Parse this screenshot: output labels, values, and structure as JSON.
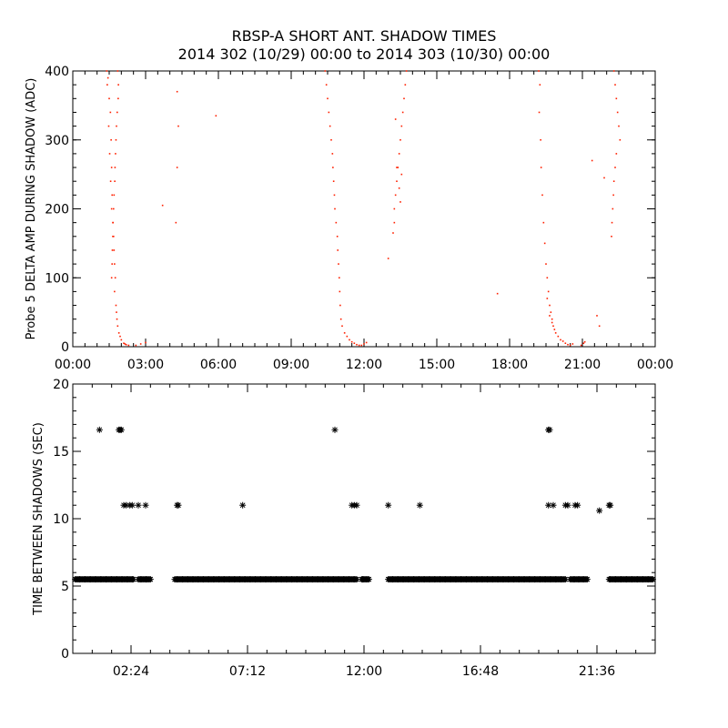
{
  "title": "RBSP-A SHORT ANT. SHADOW TIMES",
  "subtitle": "2014 302 (10/29) 00:00 to 2014 303 (10/30) 00:00",
  "colors": {
    "top_points": "#ff2000",
    "bottom_points": "#000000",
    "axes": "#000000",
    "background": "#ffffff"
  },
  "chart_data": [
    {
      "type": "scatter",
      "name": "delta-amp-panel",
      "xlabel": "",
      "ylabel": "Probe 5 DELTA AMP DURING SHADOW (ADC)",
      "x_unit": "hours",
      "xlim": [
        0,
        24
      ],
      "ylim": [
        0,
        400
      ],
      "xticks": [
        0,
        3,
        6,
        9,
        12,
        15,
        18,
        21,
        24
      ],
      "xtick_labels": [
        "00:00",
        "03:00",
        "06:00",
        "09:00",
        "12:00",
        "15:00",
        "18:00",
        "21:00",
        "00:00"
      ],
      "yticks": [
        0,
        100,
        200,
        300,
        400
      ],
      "ytick_labels": [
        "0",
        "100",
        "200",
        "300",
        "400"
      ],
      "point_color": "#ff2000",
      "points": [
        [
          1.4,
          400
        ],
        [
          1.45,
          390
        ],
        [
          1.42,
          380
        ],
        [
          1.5,
          360
        ],
        [
          1.55,
          340
        ],
        [
          1.48,
          320
        ],
        [
          1.58,
          300
        ],
        [
          1.52,
          280
        ],
        [
          1.6,
          260
        ],
        [
          1.56,
          240
        ],
        [
          1.62,
          220
        ],
        [
          1.6,
          200
        ],
        [
          1.65,
          180
        ],
        [
          1.68,
          160
        ],
        [
          1.7,
          140
        ],
        [
          1.72,
          120
        ],
        [
          1.75,
          100
        ],
        [
          1.72,
          80
        ],
        [
          1.78,
          60
        ],
        [
          1.8,
          50
        ],
        [
          1.82,
          40
        ],
        [
          1.85,
          30
        ],
        [
          1.9,
          20
        ],
        [
          1.95,
          15
        ],
        [
          2.0,
          10
        ],
        [
          2.1,
          5
        ],
        [
          2.2,
          3
        ],
        [
          2.3,
          2
        ],
        [
          1.85,
          400
        ],
        [
          1.88,
          380
        ],
        [
          1.87,
          360
        ],
        [
          1.83,
          340
        ],
        [
          1.8,
          320
        ],
        [
          1.78,
          300
        ],
        [
          1.76,
          280
        ],
        [
          1.74,
          260
        ],
        [
          1.73,
          240
        ],
        [
          1.7,
          220
        ],
        [
          1.68,
          200
        ],
        [
          1.66,
          180
        ],
        [
          1.65,
          160
        ],
        [
          1.63,
          140
        ],
        [
          1.62,
          120
        ],
        [
          1.6,
          100
        ],
        [
          2.15,
          4
        ],
        [
          2.6,
          2
        ],
        [
          2.8,
          4
        ],
        [
          3.0,
          6
        ],
        [
          4.3,
          370
        ],
        [
          4.35,
          320
        ],
        [
          4.3,
          260
        ],
        [
          4.25,
          180
        ],
        [
          3.7,
          205
        ],
        [
          5.9,
          335
        ],
        [
          10.4,
          400
        ],
        [
          10.45,
          380
        ],
        [
          10.5,
          360
        ],
        [
          10.55,
          340
        ],
        [
          10.6,
          320
        ],
        [
          10.65,
          300
        ],
        [
          10.7,
          280
        ],
        [
          10.72,
          260
        ],
        [
          10.75,
          240
        ],
        [
          10.78,
          220
        ],
        [
          10.8,
          200
        ],
        [
          10.85,
          180
        ],
        [
          10.9,
          160
        ],
        [
          10.92,
          140
        ],
        [
          10.95,
          120
        ],
        [
          10.98,
          100
        ],
        [
          11.0,
          80
        ],
        [
          11.02,
          60
        ],
        [
          11.05,
          40
        ],
        [
          11.1,
          30
        ],
        [
          11.2,
          20
        ],
        [
          11.3,
          15
        ],
        [
          11.4,
          10
        ],
        [
          11.5,
          7
        ],
        [
          11.6,
          5
        ],
        [
          11.7,
          3
        ],
        [
          11.8,
          2
        ],
        [
          11.9,
          2
        ],
        [
          12.0,
          4
        ],
        [
          12.1,
          6
        ],
        [
          13.0,
          128
        ],
        [
          13.2,
          165
        ],
        [
          13.25,
          200
        ],
        [
          13.3,
          220
        ],
        [
          13.35,
          240
        ],
        [
          13.4,
          260
        ],
        [
          13.45,
          280
        ],
        [
          13.5,
          300
        ],
        [
          13.55,
          320
        ],
        [
          13.6,
          340
        ],
        [
          13.65,
          360
        ],
        [
          13.7,
          380
        ],
        [
          13.75,
          400
        ],
        [
          13.25,
          180
        ],
        [
          13.35,
          260
        ],
        [
          13.45,
          230
        ],
        [
          13.55,
          250
        ],
        [
          13.3,
          330
        ],
        [
          13.5,
          210
        ],
        [
          17.5,
          77
        ],
        [
          19.2,
          400
        ],
        [
          19.25,
          380
        ],
        [
          19.22,
          340
        ],
        [
          19.28,
          300
        ],
        [
          19.3,
          260
        ],
        [
          19.35,
          220
        ],
        [
          19.4,
          180
        ],
        [
          19.45,
          150
        ],
        [
          19.5,
          120
        ],
        [
          19.55,
          100
        ],
        [
          19.6,
          80
        ],
        [
          19.65,
          60
        ],
        [
          19.7,
          50
        ],
        [
          19.75,
          40
        ],
        [
          19.8,
          30
        ],
        [
          19.9,
          20
        ],
        [
          20.0,
          15
        ],
        [
          20.1,
          10
        ],
        [
          20.2,
          8
        ],
        [
          20.3,
          5
        ],
        [
          20.4,
          3
        ],
        [
          20.5,
          2
        ],
        [
          20.6,
          4
        ],
        [
          19.55,
          70
        ],
        [
          19.65,
          45
        ],
        [
          19.75,
          35
        ],
        [
          19.85,
          25
        ],
        [
          20.95,
          2
        ],
        [
          21.05,
          5
        ],
        [
          21.1,
          7
        ],
        [
          21.4,
          270
        ],
        [
          21.6,
          45
        ],
        [
          21.7,
          30
        ],
        [
          21.9,
          245
        ],
        [
          22.3,
          400
        ],
        [
          22.35,
          380
        ],
        [
          22.4,
          360
        ],
        [
          22.45,
          340
        ],
        [
          22.5,
          320
        ],
        [
          22.55,
          300
        ],
        [
          22.4,
          280
        ],
        [
          22.35,
          260
        ],
        [
          22.3,
          240
        ],
        [
          22.28,
          220
        ],
        [
          22.25,
          200
        ],
        [
          22.22,
          180
        ],
        [
          22.2,
          160
        ]
      ]
    },
    {
      "type": "scatter",
      "name": "time-between-shadows-panel",
      "xlabel": "",
      "ylabel": "TIME BETWEEN SHADOWS (SEC)",
      "x_unit": "hours",
      "xlim": [
        0,
        24
      ],
      "ylim": [
        0,
        20
      ],
      "xticks": [
        2.4,
        7.2,
        12.0,
        16.8,
        21.6
      ],
      "xtick_labels": [
        "02:24",
        "07:12",
        "12:00",
        "16:48",
        "21:36"
      ],
      "yticks": [
        0,
        5,
        10,
        15,
        20
      ],
      "ytick_labels": [
        "0",
        "5",
        "10",
        "15",
        "20"
      ],
      "marker": "*",
      "point_color": "#000000",
      "dense_bands": [
        {
          "y": 5.5,
          "x_start": 0.1,
          "x_end": 2.5
        },
        {
          "y": 5.5,
          "x_start": 2.7,
          "x_end": 3.2
        },
        {
          "y": 5.5,
          "x_start": 4.2,
          "x_end": 11.7
        },
        {
          "y": 5.5,
          "x_start": 11.9,
          "x_end": 12.2
        },
        {
          "y": 5.5,
          "x_start": 13.0,
          "x_end": 20.3
        },
        {
          "y": 5.5,
          "x_start": 20.5,
          "x_end": 21.2
        },
        {
          "y": 5.5,
          "x_start": 22.1,
          "x_end": 23.9
        }
      ],
      "points": [
        [
          1.1,
          16.6
        ],
        [
          1.9,
          16.6
        ],
        [
          1.95,
          16.6
        ],
        [
          2.0,
          16.6
        ],
        [
          10.8,
          16.6
        ],
        [
          19.6,
          16.6
        ],
        [
          19.65,
          16.6
        ],
        [
          2.1,
          11
        ],
        [
          2.2,
          11
        ],
        [
          2.35,
          11
        ],
        [
          2.45,
          11
        ],
        [
          2.7,
          11
        ],
        [
          3.0,
          11
        ],
        [
          4.3,
          11
        ],
        [
          4.35,
          11
        ],
        [
          7.0,
          11
        ],
        [
          11.5,
          11
        ],
        [
          11.6,
          11
        ],
        [
          11.7,
          11
        ],
        [
          13.0,
          11
        ],
        [
          14.3,
          11
        ],
        [
          19.6,
          11
        ],
        [
          19.8,
          11
        ],
        [
          20.3,
          11
        ],
        [
          20.4,
          11
        ],
        [
          20.7,
          11
        ],
        [
          20.8,
          11
        ],
        [
          22.1,
          11
        ],
        [
          22.15,
          11
        ],
        [
          21.7,
          10.6
        ]
      ]
    }
  ]
}
